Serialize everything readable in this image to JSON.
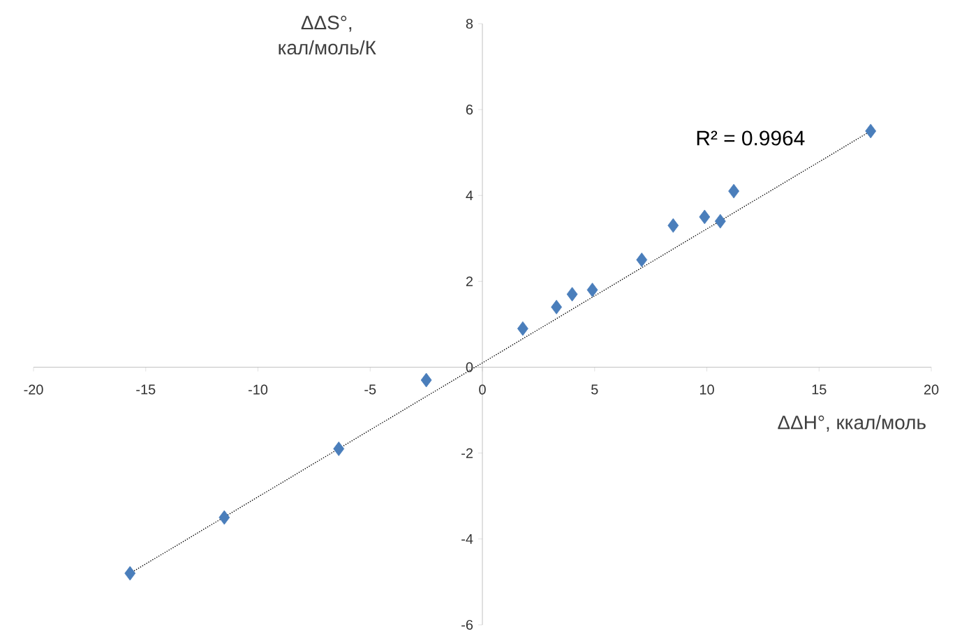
{
  "chart_data": {
    "type": "scatter",
    "xlabel": "ΔΔH°, ккал/моль",
    "ylabel": "ΔΔS°, кал/моль/К",
    "annotations": [
      "R² = 0.9964"
    ],
    "xlim": [
      -20,
      20
    ],
    "ylim": [
      -6,
      8
    ],
    "xticks": [
      -20,
      -15,
      -10,
      -5,
      0,
      5,
      10,
      15,
      20
    ],
    "yticks": [
      -6,
      -4,
      -2,
      0,
      2,
      4,
      6,
      8
    ],
    "grid": false,
    "legend": false,
    "marker": "diamond",
    "series": [
      {
        "color": "#4a7ebb",
        "x": [
          -15.7,
          -11.5,
          -6.4,
          -2.5,
          1.8,
          3.3,
          4.0,
          4.9,
          7.1,
          8.5,
          9.9,
          10.6,
          11.2,
          17.3
        ],
        "values": [
          -4.8,
          -3.5,
          -1.9,
          -0.3,
          0.9,
          1.4,
          1.7,
          1.8,
          2.5,
          3.3,
          3.5,
          3.4,
          4.1,
          5.5
        ]
      },
      {
        "type": "line",
        "color": "#000000",
        "line_style": "dotted",
        "marker": "none",
        "x": [
          -15.7,
          17.3
        ],
        "values": [
          -4.8,
          5.5
        ]
      }
    ]
  }
}
